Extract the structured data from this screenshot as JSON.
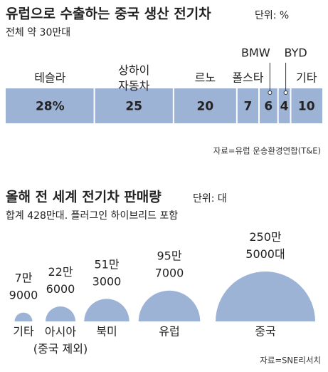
{
  "chart_data": [
    {
      "type": "bar",
      "title": "유럽으로 수출하는 중국 생산 전기차",
      "unit": "단위: %",
      "subtitle": "전체 약 30만대",
      "categories": [
        "테슬라",
        "상하이\n자동차",
        "르노",
        "폴스타",
        "BMW",
        "BYD",
        "기타"
      ],
      "values": [
        28,
        25,
        20,
        7,
        6,
        4,
        10
      ],
      "value_labels": [
        "28%",
        "25",
        "20",
        "7",
        "6",
        "4",
        "10"
      ],
      "color": "#9db3d6",
      "xlim": [
        0,
        100
      ],
      "source": "자료=유럽 운송환경연합(T&E)"
    },
    {
      "type": "bubble",
      "title": "올해 전 세계 전기차 판매량",
      "unit": "단위: 대",
      "subtitle": "합계 428만대. 플러그인 하이브리드 포함",
      "categories": [
        "기타",
        "아시아\n(중국 제외)",
        "북미",
        "유럽",
        "중국"
      ],
      "values": [
        79000,
        226000,
        513000,
        957000,
        2505000
      ],
      "value_labels": [
        "7만\n9000",
        "22만\n6000",
        "51만\n3000",
        "95만\n7000",
        "250만\n5000대"
      ],
      "color": "#9db3d6",
      "source": "자료=SNE리서치"
    }
  ]
}
